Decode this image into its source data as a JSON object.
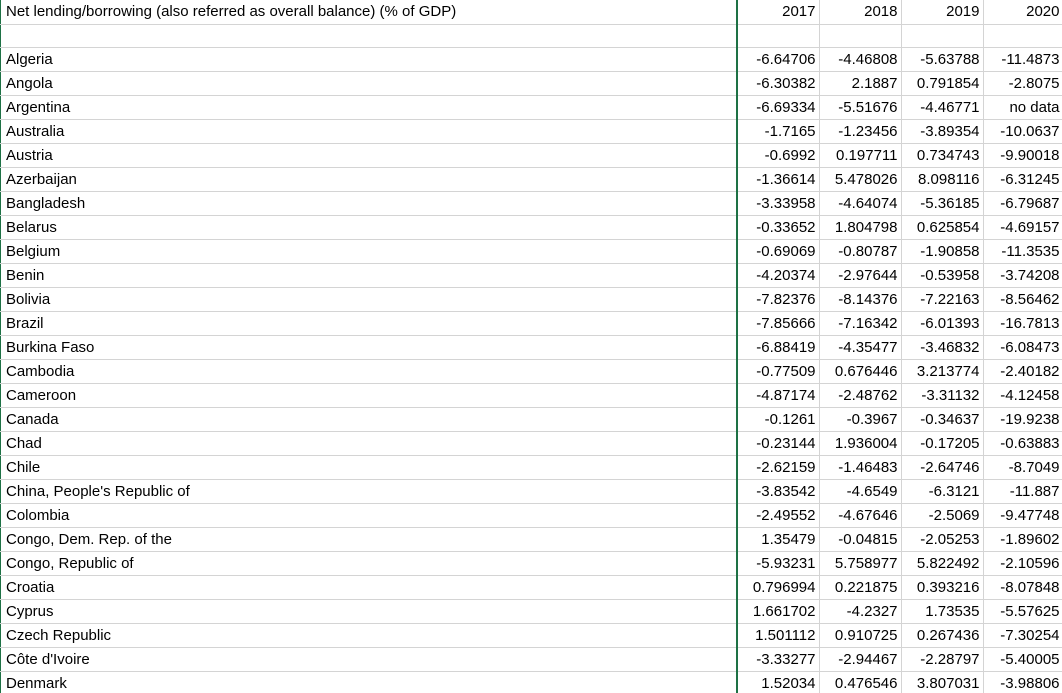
{
  "sheet": {
    "title_cell": "Net lending/borrowing (also referred as overall balance) (% of GDP)",
    "years": [
      "2017",
      "2018",
      "2019",
      "2020"
    ],
    "rows": [
      {
        "country": "Algeria",
        "values": [
          "-6.64706",
          "-4.46808",
          "-5.63788",
          "-11.4873"
        ]
      },
      {
        "country": "Angola",
        "values": [
          "-6.30382",
          "2.1887",
          "0.791854",
          "-2.8075"
        ]
      },
      {
        "country": "Argentina",
        "values": [
          "-6.69334",
          "-5.51676",
          "-4.46771",
          "no data"
        ]
      },
      {
        "country": "Australia",
        "values": [
          "-1.7165",
          "-1.23456",
          "-3.89354",
          "-10.0637"
        ]
      },
      {
        "country": "Austria",
        "values": [
          "-0.6992",
          "0.197711",
          "0.734743",
          "-9.90018"
        ]
      },
      {
        "country": "Azerbaijan",
        "values": [
          "-1.36614",
          "5.478026",
          "8.098116",
          "-6.31245"
        ]
      },
      {
        "country": "Bangladesh",
        "values": [
          "-3.33958",
          "-4.64074",
          "-5.36185",
          "-6.79687"
        ]
      },
      {
        "country": "Belarus",
        "values": [
          "-0.33652",
          "1.804798",
          "0.625854",
          "-4.69157"
        ]
      },
      {
        "country": "Belgium",
        "values": [
          "-0.69069",
          "-0.80787",
          "-1.90858",
          "-11.3535"
        ]
      },
      {
        "country": "Benin",
        "values": [
          "-4.20374",
          "-2.97644",
          "-0.53958",
          "-3.74208"
        ]
      },
      {
        "country": "Bolivia",
        "values": [
          "-7.82376",
          "-8.14376",
          "-7.22163",
          "-8.56462"
        ]
      },
      {
        "country": "Brazil",
        "values": [
          "-7.85666",
          "-7.16342",
          "-6.01393",
          "-16.7813"
        ]
      },
      {
        "country": "Burkina Faso",
        "values": [
          "-6.88419",
          "-4.35477",
          "-3.46832",
          "-6.08473"
        ]
      },
      {
        "country": "Cambodia",
        "values": [
          "-0.77509",
          "0.676446",
          "3.213774",
          "-2.40182"
        ]
      },
      {
        "country": "Cameroon",
        "values": [
          "-4.87174",
          "-2.48762",
          "-3.31132",
          "-4.12458"
        ]
      },
      {
        "country": "Canada",
        "values": [
          "-0.1261",
          "-0.3967",
          "-0.34637",
          "-19.9238"
        ]
      },
      {
        "country": "Chad",
        "values": [
          "-0.23144",
          "1.936004",
          "-0.17205",
          "-0.63883"
        ]
      },
      {
        "country": "Chile",
        "values": [
          "-2.62159",
          "-1.46483",
          "-2.64746",
          "-8.7049"
        ]
      },
      {
        "country": "China, People's Republic of",
        "values": [
          "-3.83542",
          "-4.6549",
          "-6.3121",
          "-11.887"
        ]
      },
      {
        "country": "Colombia",
        "values": [
          "-2.49552",
          "-4.67646",
          "-2.5069",
          "-9.47748"
        ]
      },
      {
        "country": "Congo, Dem. Rep. of the",
        "values": [
          "1.35479",
          "-0.04815",
          "-2.05253",
          "-1.89602"
        ]
      },
      {
        "country": "Congo, Republic of",
        "values": [
          "-5.93231",
          "5.758977",
          "5.822492",
          "-2.10596"
        ]
      },
      {
        "country": "Croatia",
        "values": [
          "0.796994",
          "0.221875",
          "0.393216",
          "-8.07848"
        ]
      },
      {
        "country": "Cyprus",
        "values": [
          "1.661702",
          "-4.2327",
          "1.73535",
          "-5.57625"
        ]
      },
      {
        "country": "Czech Republic",
        "values": [
          "1.501112",
          "0.910725",
          "0.267436",
          "-7.30254"
        ]
      },
      {
        "country": "Côte d'Ivoire",
        "values": [
          "-3.33277",
          "-2.94467",
          "-2.28797",
          "-5.40005"
        ]
      },
      {
        "country": "Denmark",
        "values": [
          "1.52034",
          "0.476546",
          "3.807031",
          "-3.98806"
        ]
      }
    ]
  },
  "colors": {
    "gridline": "#d4d4d4",
    "selection_border": "#1e7145"
  }
}
